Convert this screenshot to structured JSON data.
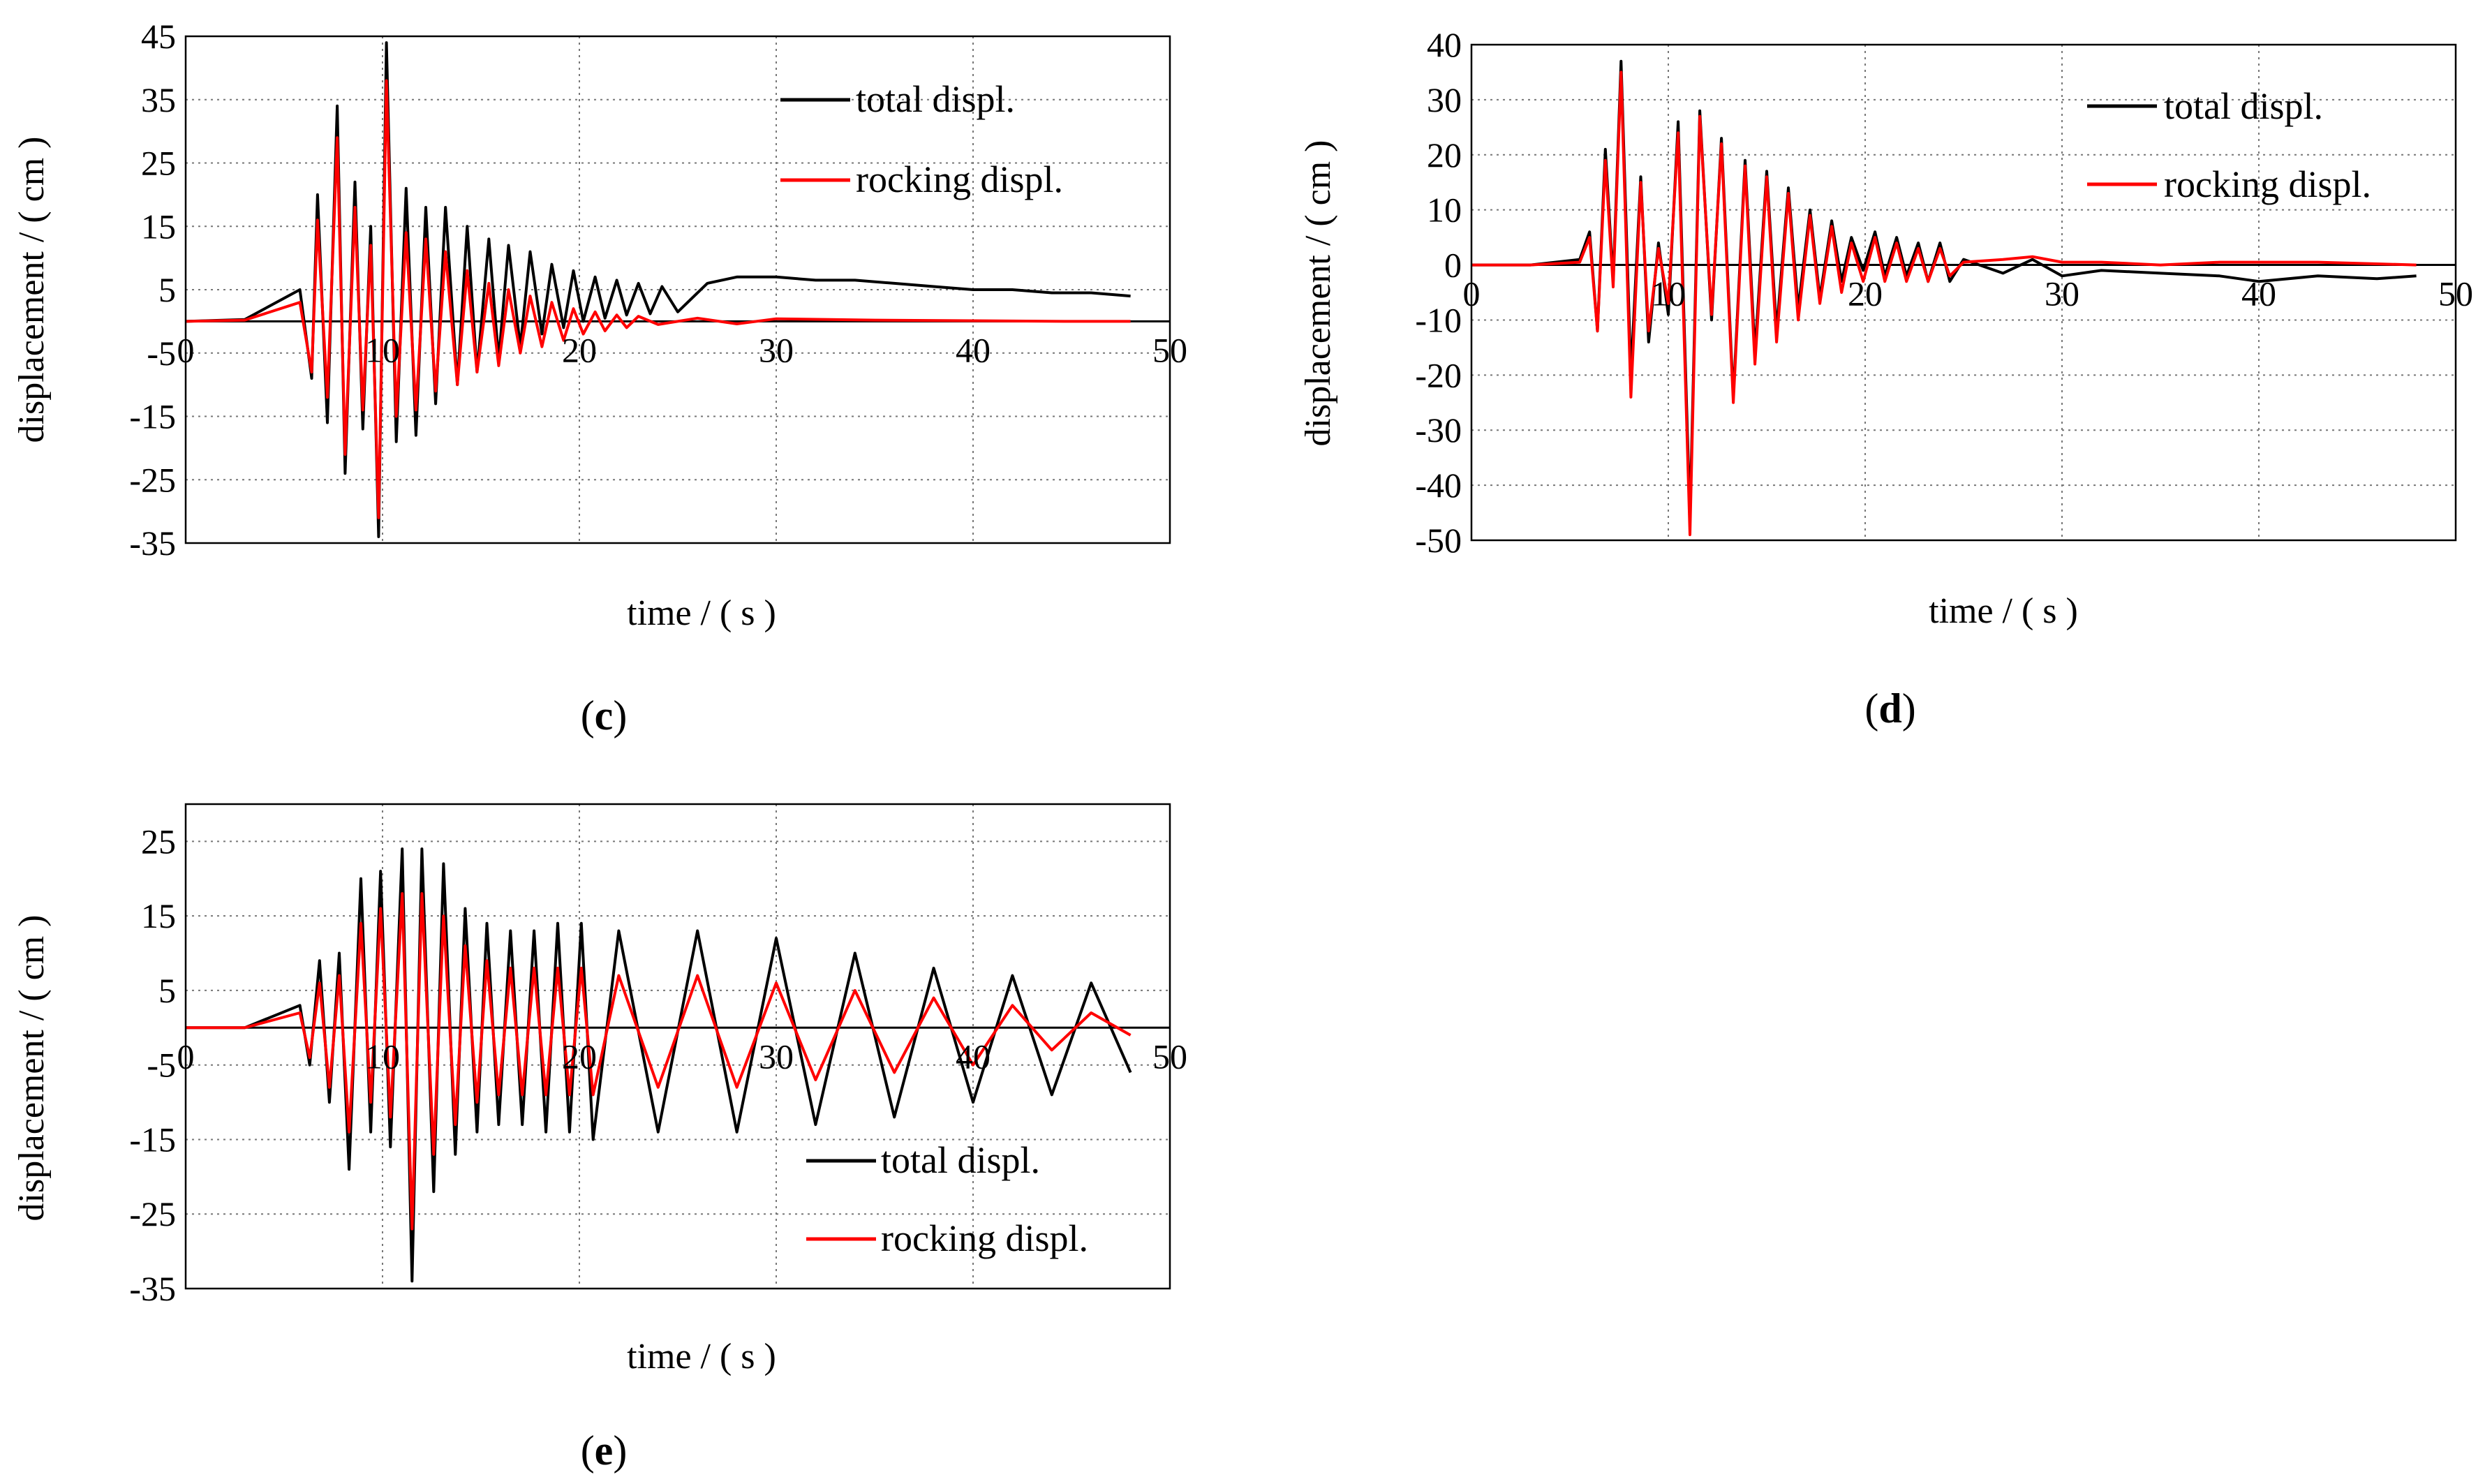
{
  "chart_data": [
    {
      "panel": "(c)",
      "panel_letter": "c",
      "type": "line",
      "xlabel": "time / ( s )",
      "ylabel": "displacement / ( cm )",
      "xlim": [
        0,
        50
      ],
      "ylim": [
        -35,
        45
      ],
      "xticks": [
        "0",
        "10",
        "20",
        "30",
        "40",
        "50"
      ],
      "yticks": [
        "45",
        "35",
        "25",
        "15",
        "5",
        "-5",
        "-15",
        "-25",
        "-35"
      ],
      "legend_position": "top-right",
      "series": [
        {
          "name": "total displ.",
          "color": "#000000",
          "x": [
            0,
            3,
            5.8,
            6.4,
            6.7,
            7.2,
            7.7,
            8.1,
            8.6,
            9.0,
            9.4,
            9.8,
            10.2,
            10.7,
            11.2,
            11.7,
            12.2,
            12.7,
            13.2,
            13.8,
            14.3,
            14.8,
            15.4,
            15.9,
            16.4,
            17.0,
            17.5,
            18.1,
            18.6,
            19.2,
            19.7,
            20.2,
            20.8,
            21.3,
            21.9,
            22.4,
            23.0,
            23.6,
            24.2,
            25.0,
            26.5,
            28.0,
            30.0,
            32.0,
            34.0,
            36.0,
            38.0,
            40.0,
            42.0,
            44.0,
            46.0,
            48.0
          ],
          "y": [
            0,
            0.3,
            5,
            -9,
            20,
            -16,
            34,
            -24,
            22,
            -17,
            15,
            -34,
            44,
            -19,
            21,
            -18,
            18,
            -13,
            18,
            -10,
            15,
            -8,
            13,
            -6,
            12,
            -4,
            11,
            -2,
            9,
            -1,
            8,
            0,
            7,
            0.5,
            6.5,
            1,
            6,
            1.2,
            5.5,
            1.5,
            6,
            7,
            7,
            6.5,
            6.5,
            6,
            5.5,
            5,
            5,
            4.5,
            4.5,
            4
          ]
        },
        {
          "name": "rocking displ.",
          "color": "#ff0000",
          "x": [
            0,
            3,
            5.8,
            6.4,
            6.7,
            7.2,
            7.7,
            8.1,
            8.6,
            9.0,
            9.4,
            9.8,
            10.2,
            10.7,
            11.2,
            11.7,
            12.2,
            12.7,
            13.2,
            13.8,
            14.3,
            14.8,
            15.4,
            15.9,
            16.4,
            17.0,
            17.5,
            18.1,
            18.6,
            19.2,
            19.7,
            20.2,
            20.8,
            21.3,
            21.9,
            22.4,
            23.0,
            24.0,
            26.0,
            28.0,
            30.0,
            35.0,
            40.0,
            45.0,
            48.0
          ],
          "y": [
            0,
            0.2,
            3,
            -8,
            16,
            -12,
            29,
            -21,
            18,
            -14,
            12,
            -31,
            38,
            -15,
            14,
            -14,
            13,
            -11,
            11,
            -10,
            8,
            -8,
            6,
            -7,
            5,
            -5,
            4,
            -4,
            3,
            -3,
            2,
            -2,
            1.5,
            -1.5,
            1,
            -1,
            0.8,
            -0.5,
            0.5,
            -0.4,
            0.4,
            0.2,
            0.1,
            0,
            0
          ]
        }
      ]
    },
    {
      "panel": "(d)",
      "panel_letter": "d",
      "type": "line",
      "xlabel": "time / ( s )",
      "ylabel": "displacement / ( cm )",
      "xlim": [
        0,
        50
      ],
      "ylim": [
        -50,
        40
      ],
      "xticks": [
        "0",
        "10",
        "20",
        "30",
        "40",
        "50"
      ],
      "yticks": [
        "40",
        "30",
        "20",
        "10",
        "0",
        "-10",
        "-20",
        "-30",
        "-40",
        "-50"
      ],
      "legend_position": "top-right",
      "series": [
        {
          "name": "total displ.",
          "color": "#000000",
          "x": [
            0,
            3,
            5.5,
            6.0,
            6.4,
            6.8,
            7.2,
            7.6,
            8.1,
            8.6,
            9.0,
            9.5,
            10.0,
            10.5,
            11.1,
            11.6,
            12.2,
            12.7,
            13.3,
            13.9,
            14.4,
            15.0,
            15.5,
            16.1,
            16.6,
            17.2,
            17.7,
            18.3,
            18.8,
            19.3,
            19.9,
            20.5,
            21.0,
            21.6,
            22.1,
            22.7,
            23.2,
            23.8,
            24.3,
            25.0,
            27.0,
            28.5,
            30.0,
            32.0,
            35.0,
            38.0,
            40.0,
            43.0,
            46.0,
            48.0
          ],
          "y": [
            0,
            0,
            1,
            6,
            -12,
            21,
            -3,
            37,
            -20,
            16,
            -14,
            4,
            -9,
            26,
            -46,
            28,
            -10,
            23,
            -24,
            19,
            -16,
            17,
            -12,
            14,
            -8,
            10,
            -6,
            8,
            -3,
            5,
            -1,
            6,
            -2,
            5,
            -2,
            4,
            -3,
            4,
            -3,
            1,
            -1.5,
            1,
            -2,
            -1,
            -1.5,
            -2,
            -3,
            -2,
            -2.5,
            -2
          ]
        },
        {
          "name": "rocking displ.",
          "color": "#ff0000",
          "x": [
            0,
            3,
            5.5,
            6.0,
            6.4,
            6.8,
            7.2,
            7.6,
            8.1,
            8.6,
            9.0,
            9.5,
            10.0,
            10.5,
            11.1,
            11.6,
            12.2,
            12.7,
            13.3,
            13.9,
            14.4,
            15.0,
            15.5,
            16.1,
            16.6,
            17.2,
            17.7,
            18.3,
            18.8,
            19.3,
            19.9,
            20.5,
            21.0,
            21.6,
            22.1,
            22.7,
            23.2,
            23.8,
            24.3,
            25.0,
            27.0,
            28.5,
            30.0,
            32.0,
            35.0,
            38.0,
            40.0,
            43.0,
            46.0,
            48.0
          ],
          "y": [
            0,
            0,
            0.5,
            5,
            -12,
            19,
            -4,
            35,
            -24,
            15,
            -12,
            3,
            -7,
            24,
            -49,
            27,
            -9,
            22,
            -25,
            18,
            -18,
            16,
            -14,
            13,
            -10,
            9,
            -7,
            7,
            -5,
            4,
            -3,
            5,
            -3,
            4,
            -3,
            3,
            -3,
            3,
            -2,
            0.5,
            1,
            1.5,
            0.5,
            0.5,
            0,
            0.5,
            0.5,
            0.5,
            0.2,
            0
          ]
        }
      ]
    },
    {
      "panel": "(e)",
      "panel_letter": "e",
      "type": "line",
      "xlabel": "time / ( s )",
      "ylabel": "displacement / ( cm )",
      "xlim": [
        0,
        50
      ],
      "ylim": [
        -35,
        30
      ],
      "xticks": [
        "0",
        "10",
        "20",
        "30",
        "40",
        "50"
      ],
      "yticks": [
        "25",
        "15",
        "5",
        "-5",
        "-15",
        "-25",
        "-35"
      ],
      "legend_position": "bottom-right",
      "series": [
        {
          "name": "total displ.",
          "color": "#000000",
          "x": [
            0,
            3,
            5.8,
            6.3,
            6.8,
            7.3,
            7.8,
            8.3,
            8.9,
            9.4,
            9.9,
            10.4,
            11.0,
            11.5,
            12.0,
            12.6,
            13.1,
            13.7,
            14.2,
            14.8,
            15.3,
            15.9,
            16.5,
            17.1,
            17.7,
            18.3,
            18.9,
            19.5,
            20.1,
            20.7,
            22.0,
            24.0,
            26.0,
            28.0,
            30.0,
            32.0,
            34.0,
            36.0,
            38.0,
            40.0,
            42.0,
            44.0,
            46.0,
            48.0
          ],
          "y": [
            0,
            0,
            3,
            -5,
            9,
            -10,
            10,
            -19,
            20,
            -14,
            21,
            -16,
            24,
            -34,
            24,
            -22,
            22,
            -17,
            16,
            -14,
            14,
            -13,
            13,
            -13,
            13,
            -14,
            14,
            -14,
            14,
            -15,
            13,
            -14,
            13,
            -14,
            12,
            -13,
            10,
            -12,
            8,
            -10,
            7,
            -9,
            6,
            -6
          ]
        },
        {
          "name": "rocking displ.",
          "color": "#ff0000",
          "x": [
            0,
            3,
            5.8,
            6.3,
            6.8,
            7.3,
            7.8,
            8.3,
            8.9,
            9.4,
            9.9,
            10.4,
            11.0,
            11.5,
            12.0,
            12.6,
            13.1,
            13.7,
            14.2,
            14.8,
            15.3,
            15.9,
            16.5,
            17.1,
            17.7,
            18.3,
            18.9,
            19.5,
            20.1,
            20.7,
            22.0,
            24.0,
            26.0,
            28.0,
            30.0,
            32.0,
            34.0,
            36.0,
            38.0,
            40.0,
            42.0,
            44.0,
            46.0,
            48.0
          ],
          "y": [
            0,
            0,
            2,
            -4,
            6,
            -8,
            7,
            -14,
            14,
            -10,
            16,
            -12,
            18,
            -27,
            18,
            -17,
            15,
            -13,
            11,
            -10,
            9,
            -9,
            8,
            -9,
            8,
            -9,
            8,
            -9,
            8,
            -9,
            7,
            -8,
            7,
            -8,
            6,
            -7,
            5,
            -6,
            4,
            -5,
            3,
            -3,
            2,
            -1
          ]
        }
      ]
    }
  ]
}
